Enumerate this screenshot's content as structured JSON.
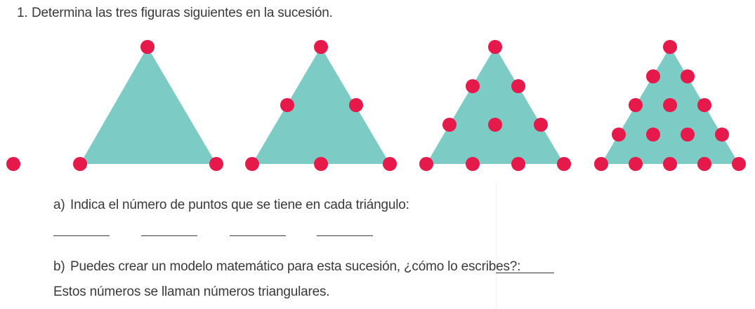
{
  "exercise": {
    "number": "1.",
    "prompt": "Determina las tres figuras siguientes en la sucesión."
  },
  "part_a": {
    "letter": "a)",
    "text": "Indica el número de puntos que se tiene en cada triángulo:",
    "answer_blanks": 4
  },
  "part_b": {
    "letter": "b)",
    "text": "Puedes crear un modelo matemático para esta sucesión, ¿cómo lo escribes?:"
  },
  "closing_text": "Estos números se llaman números triangulares.",
  "figures": [
    {
      "name": "single-dot",
      "dots_per_side": 1,
      "dots": 1
    },
    {
      "name": "triangle-2",
      "dots_per_side": 2,
      "dots": 3
    },
    {
      "name": "triangle-3",
      "dots_per_side": 3,
      "dots": 6
    },
    {
      "name": "triangle-4",
      "dots_per_side": 4,
      "dots": 10
    },
    {
      "name": "triangle-5",
      "dots_per_side": 5,
      "dots": 15
    }
  ],
  "colors": {
    "triangle_fill": "#7ccbc5",
    "dot_fill": "#e6194b",
    "text": "#3a3a3a"
  }
}
